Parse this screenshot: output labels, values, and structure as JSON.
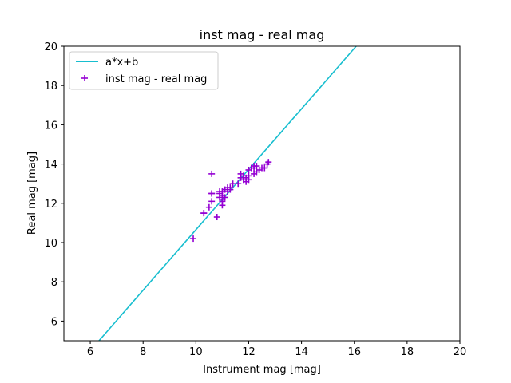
{
  "chart_data": {
    "type": "scatter",
    "title": "inst mag - real mag",
    "xlabel": "Instrument mag [mag]",
    "ylabel": "Real mag [mag]",
    "xlim": [
      5,
      20
    ],
    "ylim": [
      5,
      20
    ],
    "xticks": [
      6,
      8,
      10,
      12,
      14,
      16,
      18,
      20
    ],
    "yticks": [
      6,
      8,
      10,
      12,
      14,
      16,
      18,
      20
    ],
    "grid": false,
    "legend_position": "upper-left",
    "series": [
      {
        "name": "a*x+b",
        "kind": "line",
        "color": "#17becf",
        "x": [
          6.33,
          16.07
        ],
        "y": [
          5.0,
          20.0
        ]
      },
      {
        "name": "inst mag - real mag",
        "kind": "scatter",
        "marker": "plus",
        "color": "#9400d3",
        "x": [
          9.9,
          10.3,
          10.3,
          10.5,
          10.6,
          10.6,
          10.6,
          10.6,
          10.8,
          10.9,
          10.9,
          10.9,
          11.0,
          11.0,
          11.0,
          11.0,
          11.0,
          11.1,
          11.1,
          11.2,
          11.2,
          11.3,
          11.3,
          11.4,
          11.6,
          11.7,
          11.7,
          11.8,
          11.8,
          11.9,
          11.9,
          12.0,
          12.0,
          12.0,
          12.1,
          12.2,
          12.2,
          12.2,
          12.3,
          12.3,
          12.4,
          12.5,
          12.6,
          12.7,
          12.75
        ],
        "y": [
          10.2,
          11.5,
          11.5,
          11.8,
          12.1,
          12.5,
          12.5,
          13.5,
          11.3,
          12.3,
          12.5,
          12.6,
          11.9,
          12.1,
          12.2,
          12.4,
          12.6,
          12.3,
          12.7,
          12.6,
          12.8,
          12.7,
          12.8,
          13.0,
          13.0,
          13.3,
          13.5,
          13.2,
          13.4,
          13.1,
          13.3,
          13.2,
          13.4,
          13.7,
          13.8,
          13.5,
          13.8,
          13.9,
          13.6,
          13.9,
          13.7,
          13.8,
          13.8,
          14.0,
          14.1
        ]
      }
    ]
  }
}
